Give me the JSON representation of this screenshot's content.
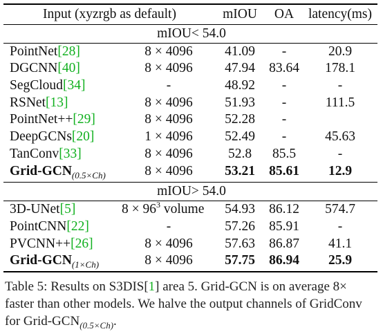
{
  "header": {
    "input": "Input (xyzrgb as default)",
    "miou": "mIOU",
    "oa": "OA",
    "latency": "latency(ms)"
  },
  "sections": [
    {
      "title": "mIOU< 54.0",
      "rows": [
        {
          "name": "PointNet",
          "ref": "28",
          "input": "8 × 4096",
          "miou": "41.09",
          "oa": "-",
          "latency": "20.9"
        },
        {
          "name": "DGCNN",
          "ref": "40",
          "input": "8 × 4096",
          "miou": "47.94",
          "oa": "83.64",
          "latency": "178.1"
        },
        {
          "name": "SegCloud",
          "ref": "34",
          "input": "-",
          "miou": "48.92",
          "oa": "-",
          "latency": "-"
        },
        {
          "name": "RSNet",
          "ref": "13",
          "input": "8 × 4096",
          "miou": "51.93",
          "oa": "-",
          "latency": "111.5"
        },
        {
          "name": "PointNet++",
          "ref": "29",
          "input": "8 × 4096",
          "miou": "52.28",
          "oa": "-",
          "latency": ""
        },
        {
          "name": "DeepGCNs",
          "ref": "20",
          "input": "1 × 4096",
          "miou": "52.49",
          "oa": "-",
          "latency": "45.63"
        },
        {
          "name": "TanConv",
          "ref": "33",
          "input": "8 × 4096",
          "miou": "52.8",
          "oa": "85.5",
          "latency": "-"
        },
        {
          "name": "Grid-GCN",
          "sub": "(0.5×Ch)",
          "input": "8 × 4096",
          "miou": "53.21",
          "oa": "85.61",
          "latency": "12.9",
          "bold": true
        }
      ]
    },
    {
      "title": "mIOU> 54.0",
      "rows": [
        {
          "name": "3D-UNet",
          "ref": "5",
          "input_pre": "8 × 96",
          "input_sup": "3",
          "input_post": " volume",
          "miou": "54.93",
          "oa": "86.12",
          "latency": "574.7"
        },
        {
          "name": "PointCNN",
          "ref": "22",
          "input": "-",
          "miou": "57.26",
          "oa": "85.91",
          "latency": "-"
        },
        {
          "name": "PVCNN++",
          "ref": "26",
          "input": "8 × 4096",
          "miou": "57.63",
          "oa": "86.87",
          "latency": "41.1"
        },
        {
          "name": "Grid-GCN",
          "sub": "(1×Ch)",
          "input": "8 × 4096",
          "miou": "57.75",
          "oa": "86.94",
          "latency": "25.9",
          "bold": true
        }
      ]
    }
  ],
  "caption": {
    "part1": "Table 5: Results on S3DIS[",
    "ref": "1",
    "part2": "] area 5. Grid-GCN is on average 8× faster than other models. We halve the output channels of GridConv for Grid-GCN",
    "sub": "(0.5×Ch)",
    "part3": "."
  }
}
